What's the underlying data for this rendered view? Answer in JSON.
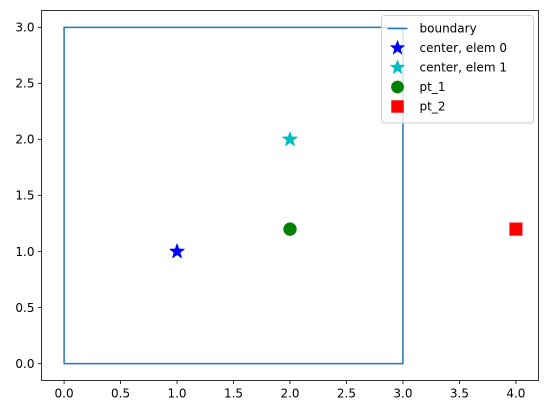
{
  "chart_data": {
    "type": "scatter",
    "title": "",
    "xlabel": "",
    "ylabel": "",
    "xlim": [
      -0.2,
      4.2
    ],
    "ylim": [
      -0.15,
      3.15
    ],
    "xticks": [
      0.0,
      0.5,
      1.0,
      1.5,
      2.0,
      2.5,
      3.0,
      3.5,
      4.0
    ],
    "yticks": [
      0.0,
      0.5,
      1.0,
      1.5,
      2.0,
      2.5,
      3.0
    ],
    "xtick_labels": [
      "0.0",
      "0.5",
      "1.0",
      "1.5",
      "2.0",
      "2.5",
      "3.0",
      "3.5",
      "4.0"
    ],
    "ytick_labels": [
      "0.0",
      "0.5",
      "1.0",
      "1.5",
      "2.0",
      "2.5",
      "3.0"
    ],
    "grid": false,
    "legend_position": "top-right",
    "series": [
      {
        "name": "boundary",
        "kind": "line",
        "color": "#1f77b4",
        "x": [
          0,
          3,
          3,
          0,
          0
        ],
        "y": [
          0,
          0,
          3,
          3,
          0
        ]
      },
      {
        "name": "center, elem 0",
        "kind": "marker",
        "marker": "star",
        "color": "#0000ff",
        "x": [
          1
        ],
        "y": [
          1
        ]
      },
      {
        "name": "center, elem 1",
        "kind": "marker",
        "marker": "star",
        "color": "#00bfbf",
        "x": [
          2
        ],
        "y": [
          2
        ]
      },
      {
        "name": "pt_1",
        "kind": "marker",
        "marker": "circle",
        "color": "#008000",
        "x": [
          2
        ],
        "y": [
          1.2
        ]
      },
      {
        "name": "pt_2",
        "kind": "marker",
        "marker": "square",
        "color": "#ff0000",
        "x": [
          4
        ],
        "y": [
          1.2
        ]
      }
    ]
  }
}
